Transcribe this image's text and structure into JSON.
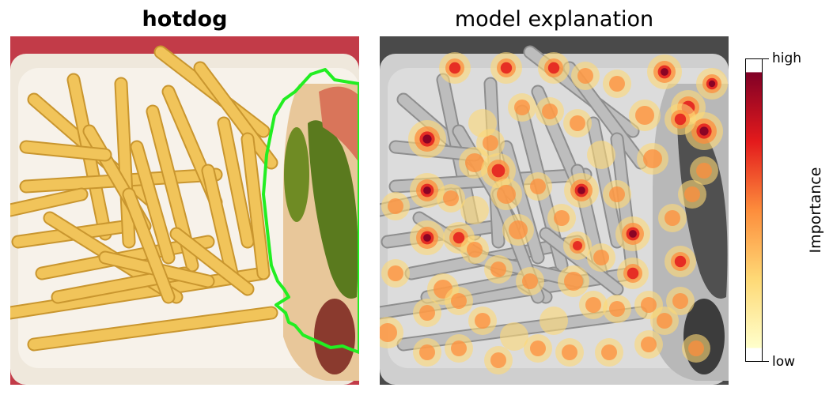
{
  "chart_data": {
    "type": "heatmap",
    "panels": [
      {
        "title": "hotdog",
        "kind": "photo",
        "highlight": "predicted region outlined in green"
      },
      {
        "title": "model explanation",
        "kind": "saliency-overlay"
      }
    ],
    "colorbar": {
      "label": "Importance",
      "tick_labels": [
        "high",
        "low"
      ],
      "colormap": "YlOrRd",
      "range": [
        "low",
        "high"
      ]
    }
  },
  "colors": {
    "outline": "#22ee22",
    "colormap_stops": [
      "#ffffcc",
      "#fed976",
      "#fd8d3c",
      "#e31a1c",
      "#800026"
    ]
  }
}
